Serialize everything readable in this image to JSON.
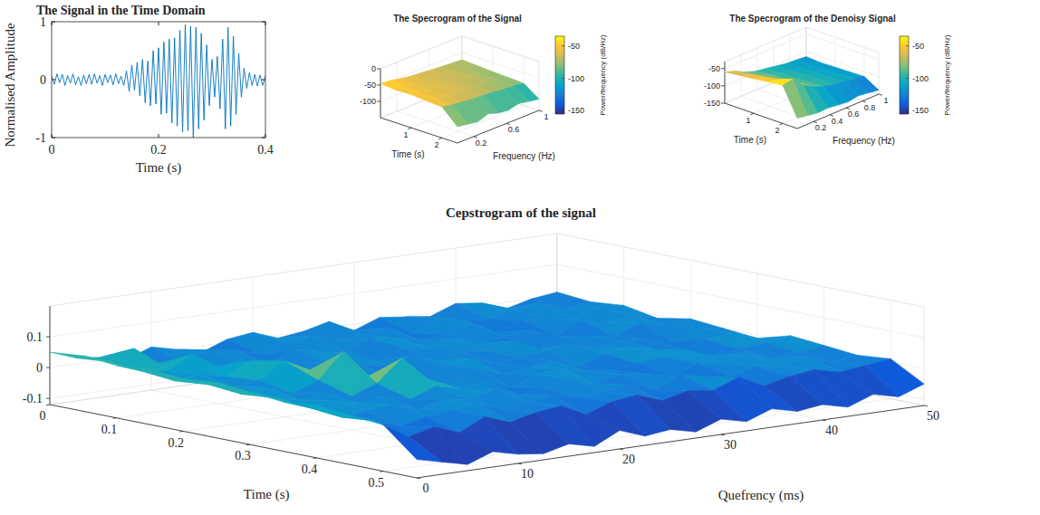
{
  "chart_data": [
    {
      "type": "line",
      "title": "The Signal in the Time Domain",
      "xlabel": "Time (s)",
      "ylabel": "Normalised Amplitude",
      "color": "#0072bd",
      "grid": false,
      "x": [
        0,
        0.005,
        0.01,
        0.015,
        0.02,
        0.025,
        0.03,
        0.035,
        0.04,
        0.045,
        0.05,
        0.055,
        0.06,
        0.065,
        0.07,
        0.075,
        0.08,
        0.085,
        0.09,
        0.095,
        0.1,
        0.105,
        0.11,
        0.115,
        0.12,
        0.125,
        0.13,
        0.135,
        0.14,
        0.145,
        0.15,
        0.155,
        0.16,
        0.165,
        0.17,
        0.175,
        0.18,
        0.185,
        0.19,
        0.195,
        0.2,
        0.205,
        0.21,
        0.215,
        0.22,
        0.225,
        0.23,
        0.235,
        0.24,
        0.245,
        0.25,
        0.255,
        0.26,
        0.265,
        0.27,
        0.275,
        0.28,
        0.285,
        0.29,
        0.295,
        0.3,
        0.305,
        0.31,
        0.315,
        0.32,
        0.325,
        0.33,
        0.335,
        0.34,
        0.345,
        0.35,
        0.355,
        0.36,
        0.365,
        0.37,
        0.375,
        0.38,
        0.385,
        0.39,
        0.395,
        0.4
      ],
      "values": [
        0.06,
        -0.08,
        0.1,
        -0.05,
        0.09,
        -0.1,
        0.07,
        -0.06,
        0.1,
        -0.09,
        0.05,
        -0.1,
        0.08,
        -0.07,
        0.09,
        -0.08,
        0.1,
        -0.06,
        0.07,
        -0.1,
        0.09,
        -0.05,
        0.08,
        -0.09,
        0.1,
        -0.07,
        0.06,
        -0.1,
        0.15,
        -0.2,
        0.25,
        -0.18,
        0.3,
        -0.28,
        0.35,
        -0.4,
        0.32,
        -0.45,
        0.5,
        -0.42,
        0.55,
        -0.6,
        0.65,
        -0.58,
        0.7,
        -0.75,
        0.72,
        -0.8,
        0.85,
        -0.9,
        0.95,
        -0.88,
        0.92,
        -1,
        0.9,
        -0.85,
        0.8,
        -0.7,
        0.6,
        -0.45,
        0.35,
        -0.3,
        0.4,
        -0.5,
        0.7,
        -0.85,
        0.9,
        -0.8,
        0.75,
        -0.6,
        0.45,
        -0.3,
        0.2,
        -0.15,
        0.12,
        -0.1,
        0.09,
        -0.11,
        0.08,
        -0.1,
        0.07
      ],
      "xlim": [
        0,
        0.4
      ],
      "xticks": [
        0,
        0.2,
        0.4
      ],
      "ylim": [
        -1,
        1
      ],
      "yticks": [
        -1,
        0,
        1
      ]
    },
    {
      "type": "surface",
      "title": "The Specrogram of the Signal",
      "xlabel": "Time (s)",
      "ylabel": "Frequency (Hz)",
      "grid": true,
      "x": [
        0,
        0.5,
        1,
        1.5,
        2,
        2.5
      ],
      "y": [
        0,
        0.125,
        0.25,
        0.375,
        0.5,
        0.625,
        0.75,
        0.875,
        1
      ],
      "z": [
        [
          -45,
          -48,
          -55,
          -60,
          -62,
          -65,
          -68,
          -70,
          -72
        ],
        [
          -50,
          -52,
          -58,
          -62,
          -66,
          -64,
          -70,
          -72,
          -75
        ],
        [
          -48,
          -55,
          -60,
          -58,
          -65,
          -68,
          -66,
          -74,
          -78
        ],
        [
          -52,
          -57,
          -62,
          -65,
          -63,
          -70,
          -72,
          -75,
          -80
        ],
        [
          -55,
          -60,
          -64,
          -68,
          -70,
          -72,
          -76,
          -78,
          -82
        ],
        [
          -100,
          -105,
          -110,
          -98,
          -108,
          -112,
          -104,
          -110,
          -115
        ]
      ],
      "xlim": [
        0,
        2.5
      ],
      "xticks": [
        1,
        2
      ],
      "ylim": [
        0,
        1
      ],
      "yticks": [
        0.2,
        0.6,
        1
      ],
      "zlim": [
        -150,
        0
      ],
      "zticks": [
        -100,
        -50,
        0
      ],
      "colorbar": {
        "label": "Power/frequency (dB/Hz)",
        "range": [
          -155,
          -35
        ],
        "ticks": [
          -150,
          -100,
          -50
        ]
      }
    },
    {
      "type": "surface",
      "title": "The Specrogram of the Denoisy Signal",
      "xlabel": "Time (s)",
      "ylabel": "Frequency (Hz)",
      "grid": true,
      "x": [
        0,
        0.5,
        1,
        1.5,
        2,
        2.5
      ],
      "y": [
        0,
        0.125,
        0.25,
        0.375,
        0.5,
        0.625,
        0.75,
        0.875,
        1
      ],
      "z": [
        [
          -60,
          -70,
          -85,
          -95,
          -100,
          -105,
          -110,
          -112,
          -115
        ],
        [
          -55,
          -65,
          -80,
          -90,
          -98,
          -104,
          -108,
          -112,
          -118
        ],
        [
          -50,
          -58,
          -75,
          -88,
          -96,
          -102,
          -106,
          -110,
          -116
        ],
        [
          -45,
          -50,
          -70,
          -85,
          -95,
          -100,
          -105,
          -110,
          -115
        ],
        [
          -40,
          -35,
          -65,
          -82,
          -92,
          -100,
          -104,
          -108,
          -114
        ],
        [
          -120,
          -125,
          -130,
          -128,
          -132,
          -135,
          -130,
          -134,
          -138
        ]
      ],
      "xlim": [
        0,
        2.5
      ],
      "xticks": [
        1,
        2
      ],
      "ylim": [
        0,
        1
      ],
      "yticks": [
        0.2,
        0.4,
        0.6,
        0.8,
        1
      ],
      "zlim": [
        -150,
        -30
      ],
      "zticks": [
        -150,
        -100,
        -50
      ],
      "colorbar": {
        "label": "Power/frequency (dB/Hz)",
        "range": [
          -155,
          -35
        ],
        "ticks": [
          -150,
          -100,
          -50
        ]
      }
    },
    {
      "type": "surface",
      "title": "Cepstrogram of the signal",
      "xlabel": "Time (s)",
      "ylabel": "Quefrency (ms)",
      "grid": true,
      "x": [
        0,
        0.05,
        0.1,
        0.15,
        0.2,
        0.25,
        0.3,
        0.35,
        0.4,
        0.45,
        0.5,
        0.55
      ],
      "y": [
        0,
        2.5,
        5,
        7.5,
        10,
        12.5,
        15,
        17.5,
        20,
        22.5,
        25,
        27.5,
        30,
        32.5,
        35,
        37.5,
        40,
        42.5,
        45,
        47.5,
        50
      ],
      "z": [
        [
          0.05,
          0.02,
          0.01,
          -0.01,
          0.02,
          0,
          -0.02,
          0.01,
          0.02,
          -0.01,
          0,
          0.02,
          -0.02,
          0.01,
          0,
          -0.01,
          0.02,
          0.01,
          -0.02,
          0,
          0.01
        ],
        [
          0.06,
          0.03,
          0.06,
          0,
          -0.01,
          0.02,
          0.01,
          -0.02,
          0.01,
          0.02,
          -0.01,
          0,
          0.01,
          -0.02,
          0.02,
          0,
          -0.01,
          0.01,
          0.02,
          -0.01,
          0
        ],
        [
          0.05,
          0.02,
          0.01,
          0.05,
          0,
          0.01,
          -0.02,
          0.02,
          0,
          -0.01,
          0.02,
          0.01,
          -0.01,
          0,
          0.02,
          -0.02,
          0.01,
          0,
          -0.01,
          0.02,
          0.01
        ],
        [
          0.06,
          0.01,
          0.02,
          0,
          0.04,
          -0.01,
          0.01,
          0,
          0.02,
          -0.02,
          0.01,
          0,
          0.02,
          -0.01,
          0,
          0.01,
          -0.02,
          0.02,
          0,
          0.01,
          -0.01
        ],
        [
          0.05,
          0.02,
          0,
          0.01,
          0.06,
          0.02,
          -0.01,
          0.01,
          0,
          0.02,
          -0.01,
          0.01,
          0,
          0.02,
          -0.02,
          0.01,
          0,
          -0.01,
          0.02,
          0,
          0.01
        ],
        [
          0.06,
          0.01,
          0.02,
          -0.01,
          0.02,
          0.1,
          0.01,
          0,
          -0.02,
          0.01,
          0.02,
          -0.01,
          0,
          0.01,
          0.02,
          -0.01,
          0.01,
          0,
          -0.02,
          0.01,
          0
        ],
        [
          0.05,
          0.02,
          0,
          0.01,
          -0.01,
          0.02,
          0.09,
          0.01,
          0,
          0.02,
          -0.01,
          0,
          0.01,
          -0.02,
          0.01,
          0.02,
          0,
          -0.01,
          0.01,
          0.02,
          -0.01
        ],
        [
          0.04,
          0.01,
          0.02,
          0,
          0.01,
          -0.01,
          0.02,
          0,
          0.01,
          -0.02,
          0.01,
          0.02,
          0,
          -0.01,
          0,
          0.01,
          0.02,
          -0.01,
          0,
          0.01,
          0.02
        ],
        [
          0.05,
          0,
          0.01,
          0.02,
          -0.01,
          0.01,
          0,
          0.02,
          -0.01,
          0,
          0.02,
          -0.01,
          0.01,
          0,
          -0.02,
          0.01,
          0,
          0.02,
          -0.01,
          0,
          0.01
        ],
        [
          0.04,
          0.01,
          -0.02,
          0,
          0.01,
          0.02,
          -0.01,
          0,
          0.01,
          -0.01,
          0,
          0.01,
          -0.02,
          0.02,
          0,
          -0.01,
          0.01,
          0,
          0.02,
          -0.01,
          0
        ],
        [
          0.03,
          -0.02,
          0,
          -0.03,
          0.01,
          -0.02,
          0,
          0.01,
          -0.03,
          0,
          0.01,
          -0.02,
          0,
          -0.01,
          0.02,
          -0.02,
          0,
          0.01,
          -0.01,
          0,
          0.01
        ],
        [
          -0.06,
          -0.08,
          -0.1,
          -0.07,
          -0.09,
          -0.1,
          -0.08,
          -0.1,
          -0.06,
          -0.09,
          -0.08,
          -0.1,
          -0.07,
          -0.09,
          -0.06,
          -0.08,
          -0.07,
          -0.09,
          -0.06,
          -0.08,
          -0.05
        ]
      ],
      "xlim": [
        0,
        0.55
      ],
      "xticks": [
        0,
        0.1,
        0.2,
        0.3,
        0.4,
        0.5
      ],
      "ylim": [
        0,
        50
      ],
      "yticks": [
        0,
        10,
        20,
        30,
        40,
        50
      ],
      "zlim": [
        -0.12,
        0.2
      ],
      "zticks": [
        -0.1,
        0,
        0.1
      ]
    }
  ]
}
